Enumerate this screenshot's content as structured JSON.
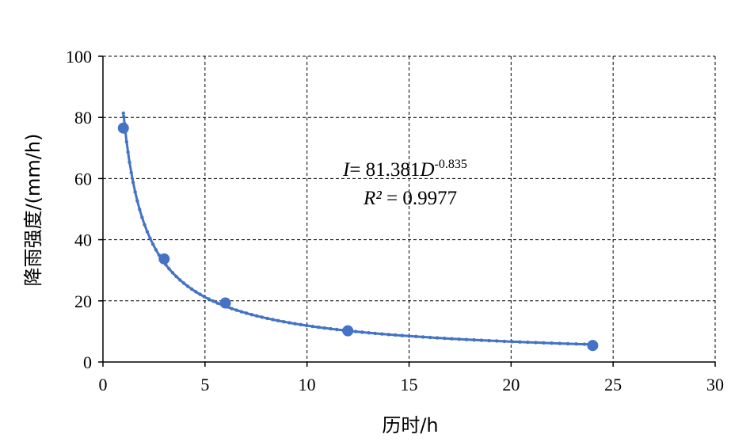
{
  "chart_data": {
    "type": "scatter",
    "x": [
      1,
      3,
      6,
      12,
      24
    ],
    "y": [
      76.5,
      33.7,
      19.3,
      10.2,
      5.4
    ],
    "xlabel": "历时/h",
    "ylabel": "降雨强度/(mm/h)",
    "xlim": [
      0,
      30
    ],
    "ylim": [
      0,
      100
    ],
    "xticks": [
      0,
      5,
      10,
      15,
      20,
      25,
      30
    ],
    "yticks": [
      0,
      20,
      40,
      60,
      80,
      100
    ],
    "grid": true,
    "marker_color": "#4472C4",
    "trendline": {
      "type": "power",
      "coefficient": 81.381,
      "exponent": -0.835,
      "x_range": [
        1,
        24
      ],
      "equation": {
        "lhs": "I",
        "equals": "= 81.381",
        "var": "D",
        "exponent_text": "-0.835"
      },
      "r_squared": {
        "label": "R²",
        "value_text": " = 0.9977"
      }
    }
  }
}
